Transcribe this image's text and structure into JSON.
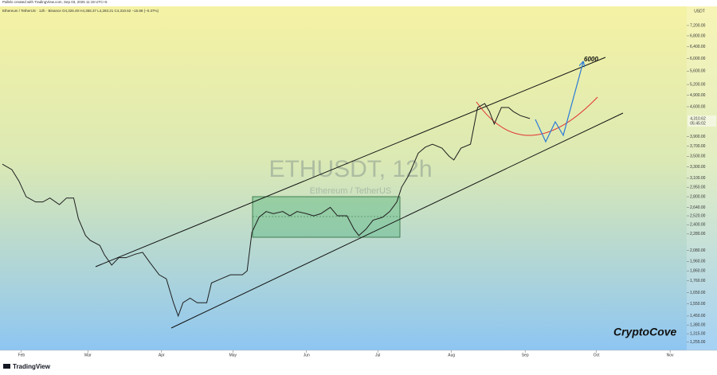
{
  "header": {
    "credit": "Pallelo created with TradingView.com, Sep 03, 2025 11:19 UTC+5",
    "symbol_line": "Ethereum / TetherUS · 12h · Binance  O4,326.49 H4,355.37 L4,283.21 C4,310.62 −15.88 (−0.37%)"
  },
  "chart_data": {
    "type": "line",
    "watermark_title": "ETHUSDT, 12h",
    "watermark_subtitle": "Ethereum / TetherUS",
    "y_unit": "USDT",
    "annotation": "6000",
    "price_label": "4,310.62",
    "countdown": "05:45:02",
    "brand": "CryptoCove",
    "color": "#1e1e1e",
    "log_scale": true,
    "grid": false,
    "x": [
      23,
      27,
      30,
      33,
      37,
      40,
      43,
      47,
      50,
      53,
      55,
      58,
      60,
      64,
      66,
      69,
      72,
      75,
      79,
      82,
      85,
      89,
      92,
      95,
      97,
      99,
      102,
      105,
      109,
      111,
      115,
      119,
      124,
      126,
      128,
      131,
      134,
      137,
      141,
      144,
      147,
      151,
      154,
      157,
      161,
      164,
      168,
      171,
      173,
      176,
      179,
      183,
      186,
      189,
      191,
      194,
      198,
      201,
      204,
      208,
      211,
      213,
      216,
      220,
      223,
      226,
      228,
      230,
      233,
      236,
      238,
      241,
      245
    ],
    "values": [
      3350,
      3250,
      3050,
      2800,
      2720,
      2720,
      2780,
      2680,
      2780,
      2780,
      2480,
      2260,
      2200,
      2140,
      2030,
      1920,
      2000,
      2000,
      2040,
      2060,
      1950,
      1820,
      1780,
      1560,
      1450,
      1560,
      1600,
      1560,
      1560,
      1740,
      1780,
      1820,
      1820,
      1860,
      2300,
      2500,
      2580,
      2550,
      2580,
      2520,
      2580,
      2550,
      2520,
      2550,
      2640,
      2520,
      2520,
      2340,
      2260,
      2340,
      2460,
      2500,
      2580,
      2720,
      2950,
      3150,
      3560,
      3680,
      3740,
      3660,
      3500,
      3430,
      3660,
      3740,
      4580,
      4680,
      4480,
      4180,
      4580,
      4580,
      4480,
      4380,
      4310
    ],
    "xlim": [
      22,
      311
    ],
    "xticks": [
      {
        "value": 31,
        "label": "Feb"
      },
      {
        "value": 59,
        "label": "Mar"
      },
      {
        "value": 90,
        "label": "Apr"
      },
      {
        "value": 120,
        "label": "May"
      },
      {
        "value": 151,
        "label": "Jun"
      },
      {
        "value": 181,
        "label": "Jul"
      },
      {
        "value": 212,
        "label": "Aug"
      },
      {
        "value": 243,
        "label": "Sep"
      },
      {
        "value": 273,
        "label": "Oct"
      },
      {
        "value": 304,
        "label": "Nov"
      }
    ],
    "ylim": [
      1200,
      8000
    ],
    "yticks": [
      {
        "value": 7200,
        "label": "7,200.00"
      },
      {
        "value": 6800,
        "label": "6,800.00"
      },
      {
        "value": 6400,
        "label": "6,400.00"
      },
      {
        "value": 6000,
        "label": "6,000.00"
      },
      {
        "value": 5600,
        "label": "5,600.00"
      },
      {
        "value": 5200,
        "label": "5,200.00"
      },
      {
        "value": 4900,
        "label": "4,900.00"
      },
      {
        "value": 4600,
        "label": "4,600.00"
      },
      {
        "value": 3900,
        "label": "3,900.00"
      },
      {
        "value": 3700,
        "label": "3,700.00"
      },
      {
        "value": 3500,
        "label": "3,500.00"
      },
      {
        "value": 3300,
        "label": "3,300.00"
      },
      {
        "value": 3100,
        "label": "3,100.00"
      },
      {
        "value": 2950,
        "label": "2,950.00"
      },
      {
        "value": 2800,
        "label": "2,800.00"
      },
      {
        "value": 2640,
        "label": "2,640.00"
      },
      {
        "value": 2520,
        "label": "2,520.00"
      },
      {
        "value": 2400,
        "label": "2,400.00"
      },
      {
        "value": 2280,
        "label": "2,280.00"
      },
      {
        "value": 2080,
        "label": "2,080.00"
      },
      {
        "value": 1960,
        "label": "1,960.00"
      },
      {
        "value": 1860,
        "label": "1,860.00"
      },
      {
        "value": 1760,
        "label": "1,760.00"
      },
      {
        "value": 1650,
        "label": "1,650.00"
      },
      {
        "value": 1550,
        "label": "1,550.00"
      },
      {
        "value": 1450,
        "label": "1,450.00"
      },
      {
        "value": 1380,
        "label": "1,380.00"
      },
      {
        "value": 1315,
        "label": "1,315.00"
      },
      {
        "value": 1255,
        "label": "1,255.00"
      }
    ]
  },
  "footer": {
    "logo": "TradingView"
  }
}
